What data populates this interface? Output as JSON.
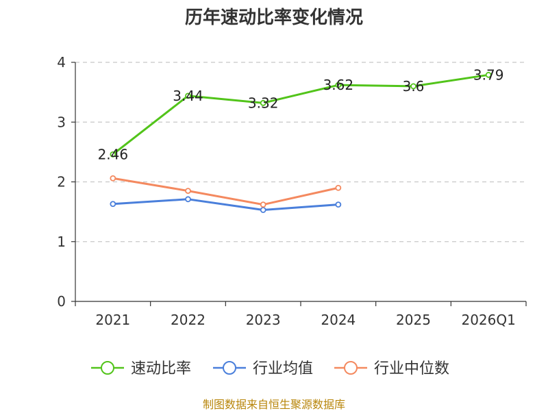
{
  "chart_data": {
    "type": "line",
    "title": "历年速动比率变化情况",
    "categories": [
      "2021",
      "2022",
      "2023",
      "2024",
      "2025",
      "2026Q1"
    ],
    "ylim": [
      0,
      4
    ],
    "yticks": [
      0,
      1,
      2,
      3,
      4
    ],
    "grid": true,
    "legend_position": "bottom",
    "series": [
      {
        "name": "速动比率",
        "color": "#52c41a",
        "values": [
          2.46,
          3.44,
          3.32,
          3.62,
          3.6,
          3.79
        ],
        "labels": true
      },
      {
        "name": "行业均值",
        "color": "#4a7fdb",
        "values": [
          1.63,
          1.71,
          1.53,
          1.62,
          null,
          null
        ],
        "labels": false
      },
      {
        "name": "行业中位数",
        "color": "#f4895f",
        "values": [
          2.06,
          1.85,
          1.62,
          1.9,
          null,
          null
        ],
        "labels": false
      }
    ],
    "source": "制图数据来自恒生聚源数据库"
  }
}
